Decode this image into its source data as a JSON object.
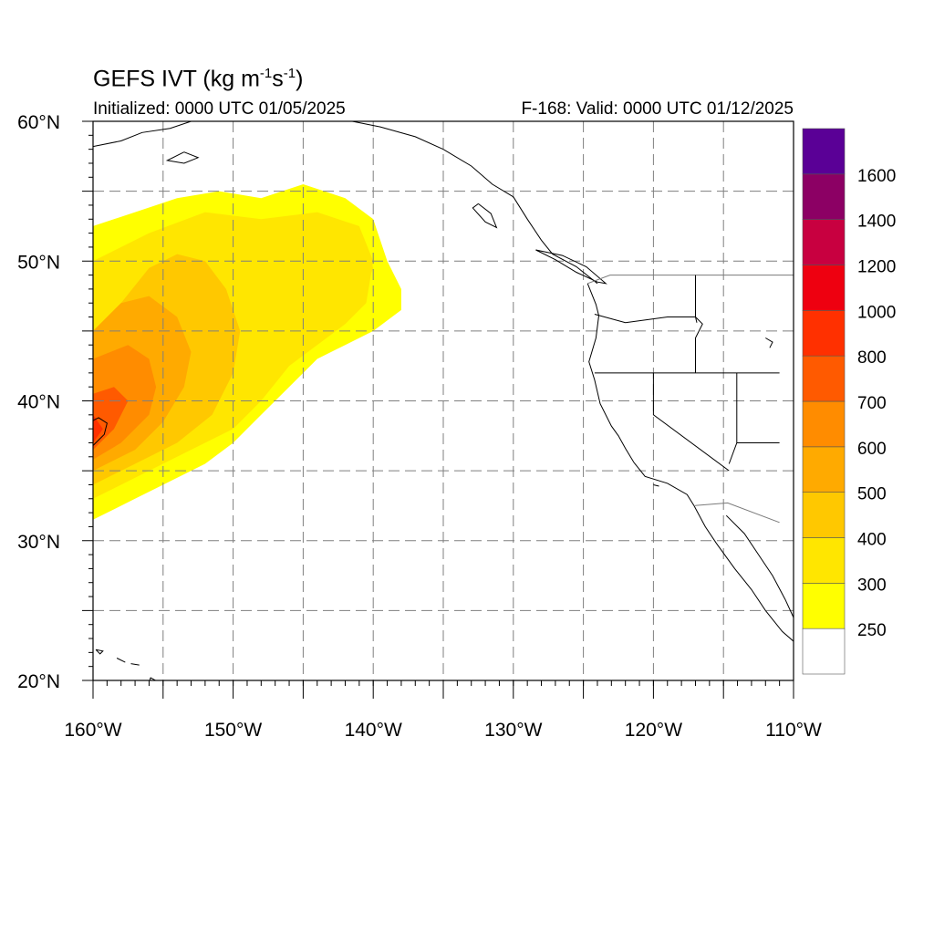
{
  "title": {
    "main": "GEFS IVT (kg m",
    "exp1": "-1",
    "mid": "s",
    "exp2": "-1",
    "end": ")"
  },
  "subtitle_left": "Initialized: 0000 UTC 01/05/2025",
  "subtitle_right": "F-168: Valid: 0000 UTC 01/12/2025",
  "map": {
    "lon_range": [
      -160,
      -110
    ],
    "lat_range": [
      20,
      60
    ],
    "lon_ticks": [
      {
        "v": -160,
        "label": "160°W"
      },
      {
        "v": -150,
        "label": "150°W"
      },
      {
        "v": -140,
        "label": "140°W"
      },
      {
        "v": -130,
        "label": "130°W"
      },
      {
        "v": -120,
        "label": "120°W"
      },
      {
        "v": -110,
        "label": "110°W"
      }
    ],
    "lat_ticks": [
      {
        "v": 60,
        "label": "60°N"
      },
      {
        "v": 50,
        "label": "50°N"
      },
      {
        "v": 40,
        "label": "40°N"
      },
      {
        "v": 30,
        "label": "30°N"
      },
      {
        "v": 20,
        "label": "20°N"
      }
    ],
    "grid_step_deg": 5
  },
  "colorbar": {
    "colors": [
      "#ffffff",
      "#ffff00",
      "#ffe600",
      "#ffc800",
      "#ffaa00",
      "#ff8c00",
      "#ff5a00",
      "#ff3000",
      "#ee0010",
      "#c80040",
      "#8c0064",
      "#5a0096"
    ],
    "labels": [
      "250",
      "300",
      "400",
      "500",
      "600",
      "700",
      "800",
      "1000",
      "1200",
      "1400",
      "1600"
    ]
  },
  "ivt_field": {
    "description_levels": [
      250,
      300,
      400,
      500,
      600,
      700,
      800
    ],
    "contours": [
      {
        "level": 250,
        "polygon": [
          [
            -160,
            31.5
          ],
          [
            -159,
            32
          ],
          [
            -157,
            33
          ],
          [
            -155,
            34
          ],
          [
            -152,
            35.5
          ],
          [
            -150,
            37
          ],
          [
            -148,
            39
          ],
          [
            -146,
            41
          ],
          [
            -144,
            43
          ],
          [
            -142,
            44
          ],
          [
            -140,
            45
          ],
          [
            -138,
            46.5
          ],
          [
            -138,
            48
          ],
          [
            -139,
            50
          ],
          [
            -140,
            53
          ],
          [
            -142,
            54.5
          ],
          [
            -145,
            55.5
          ],
          [
            -148,
            54.5
          ],
          [
            -151,
            55
          ],
          [
            -154,
            54.5
          ],
          [
            -157,
            53.5
          ],
          [
            -160,
            52.5
          ]
        ]
      },
      {
        "level": 300,
        "polygon": [
          [
            -160,
            33
          ],
          [
            -158,
            34
          ],
          [
            -156,
            35
          ],
          [
            -153,
            36.5
          ],
          [
            -150,
            38
          ],
          [
            -148,
            40
          ],
          [
            -146,
            42.5
          ],
          [
            -144,
            44
          ],
          [
            -142,
            45.5
          ],
          [
            -140.5,
            47
          ],
          [
            -140,
            50
          ],
          [
            -141,
            52.5
          ],
          [
            -144,
            53.5
          ],
          [
            -148,
            53
          ],
          [
            -152,
            53.5
          ],
          [
            -156,
            52
          ],
          [
            -160,
            50
          ]
        ]
      },
      {
        "level": 400,
        "polygon": [
          [
            -160,
            34
          ],
          [
            -157,
            35.5
          ],
          [
            -154,
            37
          ],
          [
            -151.5,
            39
          ],
          [
            -150,
            42
          ],
          [
            -149.5,
            45
          ],
          [
            -150.5,
            48
          ],
          [
            -152,
            50
          ],
          [
            -154,
            50.5
          ],
          [
            -156,
            49.5
          ],
          [
            -158,
            47
          ],
          [
            -160,
            45
          ]
        ]
      },
      {
        "level": 500,
        "polygon": [
          [
            -160,
            35
          ],
          [
            -157,
            36.5
          ],
          [
            -155,
            38.5
          ],
          [
            -153.5,
            41
          ],
          [
            -153,
            43.5
          ],
          [
            -154,
            46
          ],
          [
            -156,
            47.5
          ],
          [
            -158,
            47
          ],
          [
            -160,
            45
          ]
        ]
      },
      {
        "level": 600,
        "polygon": [
          [
            -160,
            35.8
          ],
          [
            -158,
            37
          ],
          [
            -156,
            39
          ],
          [
            -155.5,
            41
          ],
          [
            -156,
            43
          ],
          [
            -157.5,
            44
          ],
          [
            -160,
            43
          ]
        ]
      },
      {
        "level": 700,
        "polygon": [
          [
            -160,
            36.5
          ],
          [
            -158.5,
            38
          ],
          [
            -157.5,
            40
          ],
          [
            -158.5,
            41
          ],
          [
            -160,
            40.5
          ]
        ]
      },
      {
        "level": 800,
        "polygon": [
          [
            -160,
            37
          ],
          [
            -159.3,
            38
          ],
          [
            -160,
            39
          ]
        ]
      }
    ],
    "secondary_max": {
      "level": 300,
      "polygon": [
        [
          -145,
          44
        ],
        [
          -143,
          45.5
        ],
        [
          -141,
          47
        ],
        [
          -140,
          49.5
        ],
        [
          -141,
          52
        ],
        [
          -144,
          53
        ],
        [
          -147,
          52
        ],
        [
          -148,
          49
        ]
      ]
    }
  }
}
